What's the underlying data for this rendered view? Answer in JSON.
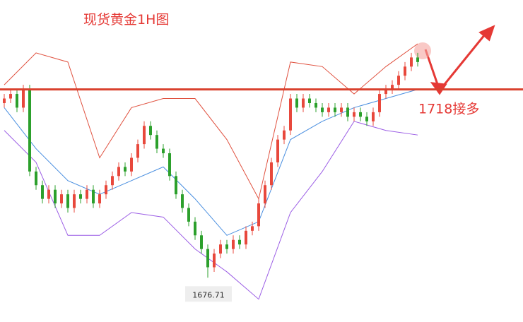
{
  "chart_data": {
    "type": "candlestick",
    "title": "现货黄金1H图",
    "ylim": [
      1667,
      1737.6
    ],
    "up_color": "#e8483c",
    "down_color": "#2ca02c",
    "open": [
      1715,
      1716,
      1717,
      1714,
      1718,
      1700,
      1697,
      1694,
      1696,
      1693,
      1695,
      1692,
      1695,
      1694,
      1696,
      1693,
      1695,
      1697,
      1699,
      1701,
      1700,
      1703,
      1706,
      1710,
      1708,
      1705,
      1704,
      1699,
      1695,
      1692,
      1689,
      1686,
      1683,
      1679,
      1682,
      1684,
      1683,
      1685,
      1684,
      1687,
      1688,
      1693,
      1697,
      1702,
      1707,
      1709,
      1716,
      1714,
      1716,
      1715,
      1714,
      1713,
      1714,
      1713,
      1714,
      1712,
      1713,
      1712,
      1711,
      1713,
      1717,
      1718,
      1719,
      1721,
      1723,
      1725
    ],
    "high": [
      1717,
      1718,
      1718,
      1719,
      1719,
      1701,
      1698,
      1697,
      1697,
      1696,
      1696,
      1696,
      1696,
      1697,
      1697,
      1696,
      1698,
      1700,
      1702,
      1702,
      1704,
      1707,
      1711,
      1711,
      1709,
      1706,
      1705,
      1700,
      1696,
      1693,
      1690,
      1687,
      1684,
      1683,
      1685,
      1685,
      1686,
      1686,
      1688,
      1689,
      1694,
      1698,
      1703,
      1708,
      1710,
      1717,
      1717,
      1717,
      1717,
      1716,
      1715,
      1715,
      1715,
      1715,
      1715,
      1714,
      1714,
      1713,
      1714,
      1718,
      1719,
      1720,
      1722,
      1724,
      1726,
      1726
    ],
    "low": [
      1714,
      1715,
      1713,
      1713,
      1699,
      1696,
      1693,
      1693,
      1692,
      1692,
      1691,
      1691,
      1693,
      1693,
      1692,
      1692,
      1694,
      1696,
      1698,
      1699,
      1699,
      1702,
      1705,
      1707,
      1704,
      1703,
      1698,
      1694,
      1691,
      1688,
      1685,
      1682,
      1676.71,
      1678,
      1681,
      1682,
      1682,
      1683,
      1683,
      1686,
      1687,
      1692,
      1696,
      1701,
      1706,
      1708,
      1713,
      1713,
      1714,
      1713,
      1712,
      1712,
      1712,
      1712,
      1711,
      1711,
      1711,
      1710,
      1710,
      1712,
      1716,
      1717,
      1718,
      1720,
      1722,
      1723
    ],
    "close": [
      1716,
      1717,
      1714,
      1718,
      1700,
      1697,
      1694,
      1696,
      1693,
      1695,
      1692,
      1695,
      1694,
      1696,
      1693,
      1695,
      1697,
      1699,
      1701,
      1700,
      1703,
      1706,
      1710,
      1708,
      1705,
      1704,
      1699,
      1695,
      1692,
      1689,
      1686,
      1683,
      1679,
      1682,
      1684,
      1683,
      1685,
      1684,
      1687,
      1688,
      1693,
      1697,
      1702,
      1707,
      1709,
      1716,
      1714,
      1716,
      1715,
      1714,
      1713,
      1714,
      1713,
      1714,
      1712,
      1713,
      1712,
      1711,
      1713,
      1717,
      1718,
      1719,
      1721,
      1723,
      1725,
      1724
    ],
    "band_index": [
      0,
      5,
      10,
      15,
      20,
      25,
      30,
      35,
      40,
      45,
      50,
      55,
      60,
      65
    ],
    "bands": [
      {
        "color": "#e0513f",
        "values": [
          1719,
          1726,
          1724,
          1703,
          1714,
          1716,
          1716,
          1707,
          1694,
          1724,
          1723,
          1717,
          1723,
          1728
        ]
      },
      {
        "color": "#4a8fe0",
        "values": [
          1714,
          1705,
          1698,
          1695,
          1698,
          1701,
          1694,
          1686,
          1689,
          1707,
          1711,
          1714,
          1716,
          1718
        ]
      },
      {
        "color": "#9b5de5",
        "values": [
          1709,
          1702,
          1686,
          1686,
          1691,
          1690,
          1683,
          1678,
          1672,
          1691,
          1700,
          1711,
          1709,
          1708
        ]
      }
    ],
    "level": 1718,
    "level_color": "#d9412e",
    "annotation": "1718接多",
    "low_label_index": 32
  }
}
